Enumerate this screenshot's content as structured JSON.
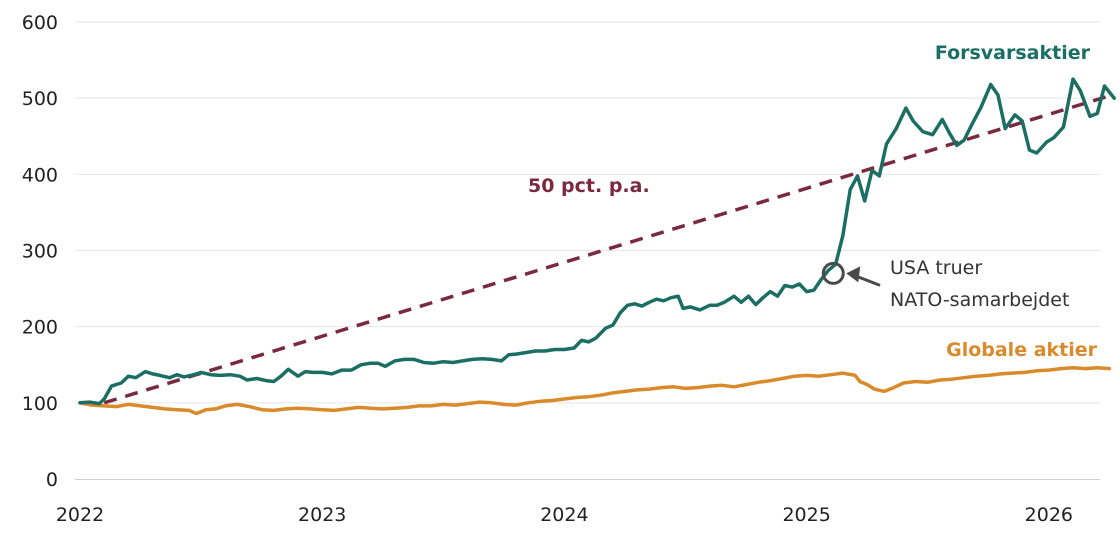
{
  "chart_data": {
    "type": "line",
    "title": "",
    "xlabel": "",
    "ylabel": "",
    "ylim": [
      0,
      600
    ],
    "xlim": [
      2022.0,
      2026.17
    ],
    "yticks": [
      0,
      100,
      200,
      300,
      400,
      500,
      600
    ],
    "ytick_labels": [
      "0",
      "100",
      "200",
      "300",
      "400",
      "500",
      "600"
    ],
    "xticks": [
      2022,
      2023,
      2024,
      2025,
      2026
    ],
    "xtick_labels": [
      "2022",
      "2023",
      "2024",
      "2025",
      "2026"
    ],
    "grid": "horizontal",
    "colors": {
      "defense": "#1b6e64",
      "global": "#d98a2b",
      "trend": "#7a2a3f",
      "annotation": "#4a4a4a",
      "grid": "#e6e6e6"
    },
    "series": [
      {
        "name": "Forsvarsaktier",
        "key": "defense",
        "points": [
          [
            2022.0,
            100
          ],
          [
            2022.04,
            101
          ],
          [
            2022.08,
            99
          ],
          [
            2022.1,
            105
          ],
          [
            2022.13,
            122
          ],
          [
            2022.17,
            126
          ],
          [
            2022.2,
            135
          ],
          [
            2022.23,
            133
          ],
          [
            2022.27,
            141
          ],
          [
            2022.3,
            138
          ],
          [
            2022.33,
            136
          ],
          [
            2022.37,
            133
          ],
          [
            2022.4,
            137
          ],
          [
            2022.43,
            134
          ],
          [
            2022.47,
            137
          ],
          [
            2022.5,
            140
          ],
          [
            2022.54,
            137
          ],
          [
            2022.58,
            136
          ],
          [
            2022.62,
            137
          ],
          [
            2022.66,
            135
          ],
          [
            2022.69,
            130
          ],
          [
            2022.73,
            132
          ],
          [
            2022.77,
            129
          ],
          [
            2022.8,
            128
          ],
          [
            2022.83,
            135
          ],
          [
            2022.86,
            144
          ],
          [
            2022.9,
            135
          ],
          [
            2022.93,
            141
          ],
          [
            2022.96,
            140
          ],
          [
            2023.0,
            140
          ],
          [
            2023.04,
            138
          ],
          [
            2023.08,
            143
          ],
          [
            2023.12,
            143
          ],
          [
            2023.16,
            150
          ],
          [
            2023.2,
            152
          ],
          [
            2023.23,
            152
          ],
          [
            2023.26,
            148
          ],
          [
            2023.3,
            155
          ],
          [
            2023.34,
            157
          ],
          [
            2023.38,
            157
          ],
          [
            2023.42,
            153
          ],
          [
            2023.46,
            152
          ],
          [
            2023.5,
            154
          ],
          [
            2023.54,
            153
          ],
          [
            2023.58,
            155
          ],
          [
            2023.62,
            157
          ],
          [
            2023.66,
            158
          ],
          [
            2023.7,
            157
          ],
          [
            2023.74,
            155
          ],
          [
            2023.77,
            163
          ],
          [
            2023.8,
            164
          ],
          [
            2023.84,
            166
          ],
          [
            2023.88,
            168
          ],
          [
            2023.92,
            168
          ],
          [
            2023.96,
            170
          ],
          [
            2024.0,
            170
          ],
          [
            2024.04,
            172
          ],
          [
            2024.07,
            182
          ],
          [
            2024.1,
            180
          ],
          [
            2024.13,
            185
          ],
          [
            2024.17,
            198
          ],
          [
            2024.2,
            202
          ],
          [
            2024.23,
            218
          ],
          [
            2024.26,
            228
          ],
          [
            2024.29,
            230
          ],
          [
            2024.32,
            227
          ],
          [
            2024.35,
            232
          ],
          [
            2024.38,
            236
          ],
          [
            2024.41,
            234
          ],
          [
            2024.44,
            238
          ],
          [
            2024.47,
            240
          ],
          [
            2024.49,
            224
          ],
          [
            2024.52,
            226
          ],
          [
            2024.56,
            222
          ],
          [
            2024.6,
            228
          ],
          [
            2024.63,
            228
          ],
          [
            2024.66,
            232
          ],
          [
            2024.7,
            240
          ],
          [
            2024.73,
            232
          ],
          [
            2024.76,
            240
          ],
          [
            2024.79,
            229
          ],
          [
            2024.82,
            238
          ],
          [
            2024.85,
            246
          ],
          [
            2024.88,
            240
          ],
          [
            2024.91,
            254
          ],
          [
            2024.94,
            252
          ],
          [
            2024.97,
            256
          ],
          [
            2025.0,
            246
          ],
          [
            2025.03,
            248
          ],
          [
            2025.06,
            262
          ],
          [
            2025.09,
            274
          ],
          [
            2025.12,
            282
          ],
          [
            2025.15,
            320
          ],
          [
            2025.18,
            380
          ],
          [
            2025.21,
            398
          ],
          [
            2025.24,
            365
          ],
          [
            2025.27,
            405
          ],
          [
            2025.3,
            398
          ],
          [
            2025.33,
            440
          ],
          [
            2025.37,
            460
          ],
          [
            2025.41,
            487
          ],
          [
            2025.44,
            470
          ],
          [
            2025.48,
            456
          ],
          [
            2025.52,
            452
          ],
          [
            2025.56,
            472
          ],
          [
            2025.59,
            454
          ],
          [
            2025.62,
            438
          ],
          [
            2025.65,
            445
          ],
          [
            2025.68,
            464
          ],
          [
            2025.72,
            488
          ],
          [
            2025.76,
            518
          ],
          [
            2025.79,
            504
          ],
          [
            2025.82,
            460
          ],
          [
            2025.86,
            478
          ],
          [
            2025.89,
            470
          ],
          [
            2025.92,
            432
          ],
          [
            2025.95,
            428
          ],
          [
            2025.99,
            442
          ],
          [
            2026.02,
            448
          ],
          [
            2026.06,
            462
          ],
          [
            2026.1,
            525
          ],
          [
            2026.13,
            510
          ],
          [
            2026.17,
            476
          ],
          [
            2026.2,
            480
          ],
          [
            2026.23,
            516
          ],
          [
            2026.27,
            500
          ]
        ]
      },
      {
        "name": "Globale aktier",
        "key": "global",
        "points": [
          [
            2022.0,
            100
          ],
          [
            2022.05,
            97
          ],
          [
            2022.1,
            96
          ],
          [
            2022.15,
            95
          ],
          [
            2022.2,
            98
          ],
          [
            2022.25,
            96
          ],
          [
            2022.3,
            94
          ],
          [
            2022.35,
            92
          ],
          [
            2022.4,
            91
          ],
          [
            2022.45,
            90
          ],
          [
            2022.48,
            86
          ],
          [
            2022.52,
            91
          ],
          [
            2022.56,
            92
          ],
          [
            2022.6,
            96
          ],
          [
            2022.65,
            98
          ],
          [
            2022.7,
            95
          ],
          [
            2022.75,
            91
          ],
          [
            2022.8,
            90
          ],
          [
            2022.85,
            92
          ],
          [
            2022.9,
            93
          ],
          [
            2022.95,
            92
          ],
          [
            2023.0,
            91
          ],
          [
            2023.05,
            90
          ],
          [
            2023.1,
            92
          ],
          [
            2023.15,
            94
          ],
          [
            2023.2,
            93
          ],
          [
            2023.25,
            92
          ],
          [
            2023.3,
            93
          ],
          [
            2023.35,
            94
          ],
          [
            2023.4,
            96
          ],
          [
            2023.45,
            96
          ],
          [
            2023.5,
            98
          ],
          [
            2023.55,
            97
          ],
          [
            2023.6,
            99
          ],
          [
            2023.65,
            101
          ],
          [
            2023.7,
            100
          ],
          [
            2023.75,
            98
          ],
          [
            2023.8,
            97
          ],
          [
            2023.85,
            100
          ],
          [
            2023.9,
            102
          ],
          [
            2023.95,
            103
          ],
          [
            2024.0,
            105
          ],
          [
            2024.05,
            107
          ],
          [
            2024.1,
            108
          ],
          [
            2024.15,
            110
          ],
          [
            2024.2,
            113
          ],
          [
            2024.25,
            115
          ],
          [
            2024.3,
            117
          ],
          [
            2024.35,
            118
          ],
          [
            2024.4,
            120
          ],
          [
            2024.45,
            121
          ],
          [
            2024.5,
            119
          ],
          [
            2024.55,
            120
          ],
          [
            2024.6,
            122
          ],
          [
            2024.65,
            123
          ],
          [
            2024.7,
            121
          ],
          [
            2024.75,
            124
          ],
          [
            2024.8,
            127
          ],
          [
            2024.85,
            129
          ],
          [
            2024.9,
            132
          ],
          [
            2024.95,
            135
          ],
          [
            2025.0,
            136
          ],
          [
            2025.05,
            135
          ],
          [
            2025.1,
            137
          ],
          [
            2025.15,
            139
          ],
          [
            2025.2,
            136
          ],
          [
            2025.22,
            128
          ],
          [
            2025.25,
            124
          ],
          [
            2025.28,
            118
          ],
          [
            2025.32,
            115
          ],
          [
            2025.36,
            120
          ],
          [
            2025.4,
            126
          ],
          [
            2025.45,
            128
          ],
          [
            2025.5,
            127
          ],
          [
            2025.55,
            130
          ],
          [
            2025.6,
            131
          ],
          [
            2025.65,
            133
          ],
          [
            2025.7,
            135
          ],
          [
            2025.75,
            136
          ],
          [
            2025.8,
            138
          ],
          [
            2025.85,
            139
          ],
          [
            2025.9,
            140
          ],
          [
            2025.95,
            142
          ],
          [
            2026.0,
            143
          ],
          [
            2026.05,
            145
          ],
          [
            2026.1,
            146
          ],
          [
            2026.15,
            145
          ],
          [
            2026.2,
            146
          ],
          [
            2026.25,
            145
          ]
        ]
      },
      {
        "name": "50 pct. p.a.",
        "key": "trend",
        "style": "dashed",
        "points": [
          [
            2022.1,
            100
          ],
          [
            2026.27,
            505
          ]
        ]
      }
    ],
    "labels": {
      "defense": "Forsvarsaktier",
      "global": "Globale aktier",
      "trend": "50 pct. p.a."
    },
    "annotation": {
      "line1": "USA truer",
      "line2": "NATO-samarbejdet",
      "x": 2025.11,
      "y": 270
    }
  }
}
